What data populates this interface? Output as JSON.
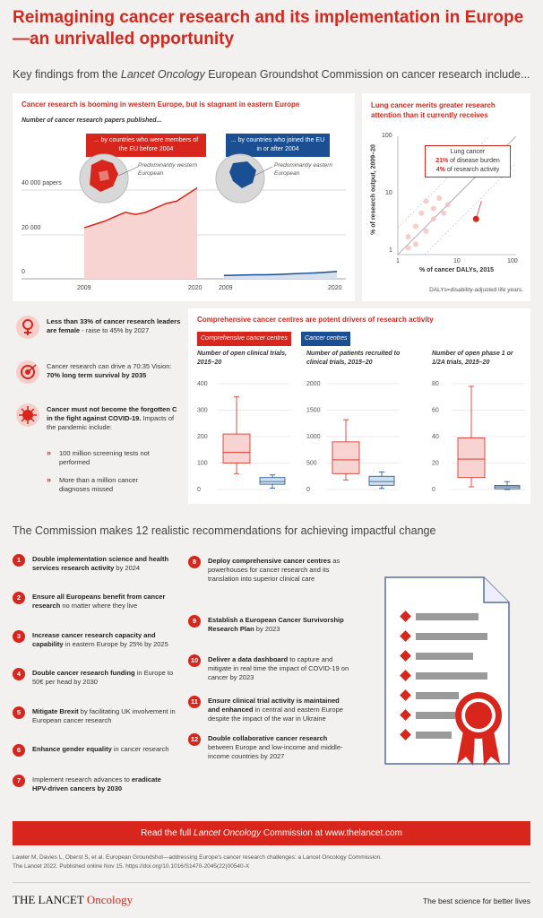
{
  "title": "Reimagining cancer research and its implementation in Europe—an unrivalled opportunity",
  "subtitle_pre": "Key findings from the ",
  "subtitle_em": "Lancet Oncology",
  "subtitle_post": " European Groundshot Commission on cancer research include...",
  "papers": {
    "title": "Cancer research is booming in western Europe, but is stagnant in eastern Europe",
    "subtitle": "Number of cancer research papers published...",
    "tag_west": "... by countries who were members of the EU before 2004",
    "tag_east": "... by countries who joined the EU in or after 2004",
    "label_west": "Predominantly western European",
    "label_east": "Predominantly eastern European",
    "y_ticks": [
      "40 000 papers",
      "20 000",
      "0"
    ],
    "x_start": "2009",
    "x_end": "2020",
    "colors": {
      "west": "#d9261c",
      "east": "#1b4f93"
    }
  },
  "lung": {
    "title": "Lung cancer merits greater research attention than it currently receives",
    "ylabel": "% of research output, 2009–20",
    "xlabel": "% of cancer DALYs, 2015",
    "y_ticks": [
      "100",
      "10",
      "1"
    ],
    "x_ticks": [
      "1",
      "10",
      "100"
    ],
    "callout_title": "Lung cancer",
    "callout_val1": "21%",
    "callout_txt1": " of disease burden",
    "callout_val2": "4%",
    "callout_txt2": " of research activity",
    "footnote": "DALYs=disability-adjusted life years."
  },
  "left": {
    "item1_bold": "Less than 33% of cancer research leaders are female",
    "item1_rest": " - raise to 45% by 2027",
    "item2_pre": "Cancer research can drive a 70:35 Vision: ",
    "item2_bold": "70% long term survival by 2035",
    "item3_bold": "Cancer must not become the forgotten C in the fight against COVID-19.",
    "item3_rest": " Impacts of the pandemic include:",
    "bullet1": "100 million screening tests not performed",
    "bullet2": "More than a million cancer diagnoses missed"
  },
  "centres": {
    "title": "Comprehensive cancer centres are potent drivers of research activity",
    "tag_cc": "Comprehensive cancer centres",
    "tag_c": "Cancer centres",
    "sub1": "Number of open clinical trials, 2015–20",
    "sub2": "Number of patients recruited to clinical trials, 2015–20",
    "sub3": "Number of open phase 1 or 1/2A trials, 2015–20",
    "ticks1": [
      "400",
      "300",
      "200",
      "100",
      "0"
    ],
    "ticks2": [
      "2000",
      "1500",
      "1000",
      "500",
      "0"
    ],
    "ticks3": [
      "80",
      "60",
      "40",
      "20",
      "0"
    ]
  },
  "chart_data": [
    {
      "type": "area",
      "title": "Number of cancer research papers published... by countries who were members of the EU before 2004",
      "x": [
        2009,
        2010,
        2011,
        2012,
        2013,
        2014,
        2015,
        2016,
        2017,
        2018,
        2019,
        2020
      ],
      "values": [
        23000,
        24500,
        26000,
        28000,
        30000,
        29000,
        30000,
        32000,
        34000,
        35000,
        38000,
        41000
      ],
      "ylim": [
        0,
        45000
      ]
    },
    {
      "type": "area",
      "title": "Number of cancer research papers published... by countries who joined the EU in or after 2004",
      "x": [
        2009,
        2010,
        2011,
        2012,
        2013,
        2014,
        2015,
        2016,
        2017,
        2018,
        2019,
        2020
      ],
      "values": [
        1500,
        1600,
        1700,
        1800,
        1800,
        1900,
        2100,
        2300,
        2500,
        2700,
        3000,
        3300
      ],
      "ylim": [
        0,
        45000
      ]
    },
    {
      "type": "scatter",
      "title": "Lung cancer merits greater research attention than it currently receives",
      "xlabel": "% of cancer DALYs, 2015",
      "ylabel": "% of research output, 2009–20",
      "xlim": [
        1,
        100
      ],
      "ylim": [
        1,
        100
      ],
      "scale": "log",
      "points": [
        {
          "x": 21,
          "y": 4,
          "label": "Lung cancer"
        },
        {
          "x": 1.5,
          "y": 2
        },
        {
          "x": 2,
          "y": 3
        },
        {
          "x": 2.5,
          "y": 5
        },
        {
          "x": 3,
          "y": 2.5
        },
        {
          "x": 3,
          "y": 8
        },
        {
          "x": 4,
          "y": 4
        },
        {
          "x": 4,
          "y": 6
        },
        {
          "x": 5,
          "y": 9
        },
        {
          "x": 6,
          "y": 5
        },
        {
          "x": 7,
          "y": 7
        },
        {
          "x": 2,
          "y": 1.5
        },
        {
          "x": 1.5,
          "y": 1.3
        }
      ]
    },
    {
      "type": "box",
      "title": "Number of open clinical trials, 2015–20",
      "ylim": [
        0,
        400
      ],
      "series": [
        {
          "name": "Comprehensive cancer centres",
          "min": 60,
          "q1": 100,
          "median": 140,
          "q3": 210,
          "max": 350
        },
        {
          "name": "Cancer centres",
          "min": 5,
          "q1": 20,
          "median": 30,
          "q3": 45,
          "max": 55
        }
      ]
    },
    {
      "type": "box",
      "title": "Number of patients recruited to clinical trials, 2015–20",
      "ylim": [
        0,
        2000
      ],
      "series": [
        {
          "name": "Comprehensive cancer centres",
          "min": 180,
          "q1": 300,
          "median": 560,
          "q3": 900,
          "max": 1320
        },
        {
          "name": "Cancer centres",
          "min": 20,
          "q1": 80,
          "median": 150,
          "q3": 250,
          "max": 330
        }
      ]
    },
    {
      "type": "box",
      "title": "Number of open phase 1 or 1/2A trials, 2015–20",
      "ylim": [
        0,
        80
      ],
      "series": [
        {
          "name": "Comprehensive cancer centres",
          "min": 2,
          "q1": 9,
          "median": 23,
          "q3": 39,
          "max": 78
        },
        {
          "name": "Cancer centres",
          "min": 0,
          "q1": 0.5,
          "median": 2,
          "q3": 3,
          "max": 6
        }
      ]
    }
  ],
  "recs_heading": "The Commission makes 12 realistic recommendations for achieving impactful change",
  "recs": [
    {
      "n": "1",
      "b": "Double implementation science and health services research activity",
      "r": " by 2024"
    },
    {
      "n": "2",
      "b": "Ensure all Europeans benefit from cancer research",
      "r": " no matter where they live"
    },
    {
      "n": "3",
      "b": "Increase cancer research capacity and capability",
      "r": " in eastern Europe by 25% by 2025"
    },
    {
      "n": "4",
      "b": "Double cancer research funding",
      "r": " in Europe to 50€ per head by 2030"
    },
    {
      "n": "5",
      "b": "Mitigate Brexit",
      "r": " by facilitating UK involvement in European cancer research"
    },
    {
      "n": "6",
      "b": "Enhance gender equality",
      "r": " in cancer research"
    },
    {
      "n": "7",
      "p": "Implement research advances to ",
      "b": "eradicate HPV-driven cancers by 2030",
      "r": ""
    },
    {
      "n": "8",
      "b": "Deploy comprehensive cancer centres",
      "r": " as powerhouses for cancer research and its translation into superior clinical care"
    },
    {
      "n": "9",
      "b": "Establish a European Cancer Survivorship Research Plan",
      "r": " by 2023"
    },
    {
      "n": "10",
      "b": "Deliver a data dashboard",
      "r": " to capture and mitigate in real time the impact of COVID-19 on cancer by 2023"
    },
    {
      "n": "11",
      "b": "Ensure clinical trial activity is maintained and enhanced",
      "r": " in central and eastern Europe despite the impact of the war in Ukraine"
    },
    {
      "n": "12",
      "b": "Double collaborative cancer research",
      "r": " between Europe and low-income and middle-income countries by 2027"
    }
  ],
  "banner_pre": "Read the full ",
  "banner_em": "Lancet Oncology",
  "banner_post": " Commission at www.thelancet.com",
  "ref_line1": "Lawler M, Davies L, Oberst S, et al. European Groundshot—addressing Europe's cancer research challenges: a Lancet Oncology Commission.",
  "ref_line2": "The Lancet 2022. Published online Nov 15. https://doi.org/10.1016/S1470-2045(22)00540-X",
  "brand_main": "THE LANCET",
  "brand_sub": "Oncology",
  "tagline": "The best science for better lives"
}
